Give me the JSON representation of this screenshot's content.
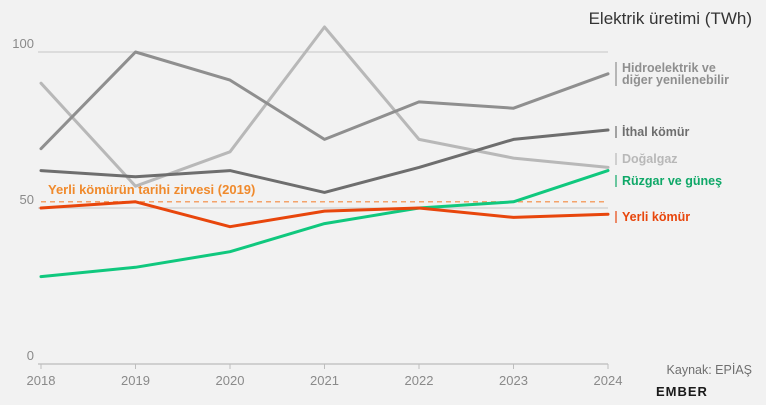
{
  "chart_data": {
    "type": "line",
    "title": "Elektrik üretimi (TWh)",
    "x": [
      2018,
      2019,
      2020,
      2021,
      2022,
      2023,
      2024
    ],
    "xlim": [
      2018,
      2024
    ],
    "ylim": [
      0,
      100
    ],
    "yticks": [
      0,
      50,
      100
    ],
    "grid": true,
    "series": [
      {
        "name": "Hidroelektrik ve diğer yenilenebilir",
        "label_lines": [
          "Hidroelektrik ve",
          "diğer yenilenebilir"
        ],
        "color": "#8f8f8f",
        "values": [
          69,
          100,
          91,
          72,
          84,
          82,
          93
        ]
      },
      {
        "name": "İthal kömür",
        "label_lines": [
          "İthal kömür"
        ],
        "color": "#6e6e6e",
        "values": [
          62,
          60,
          62,
          55,
          63,
          72,
          75
        ]
      },
      {
        "name": "Doğalgaz",
        "label_lines": [
          "Doğalgaz"
        ],
        "color": "#b8b8b8",
        "values": [
          90,
          57,
          68,
          108,
          72,
          66,
          63
        ]
      },
      {
        "name": "Rüzgar ve güneş",
        "label_lines": [
          "Rüzgar ve güneş"
        ],
        "color": "#10c87e",
        "values": [
          28,
          31,
          36,
          45,
          50,
          52,
          62
        ]
      },
      {
        "name": "Yerli kömür",
        "label_lines": [
          "Yerli kömür"
        ],
        "color": "#e8460c",
        "values": [
          50,
          52,
          44,
          49,
          50,
          47,
          48
        ]
      }
    ],
    "reference_line": {
      "label": "Yerli kömürün tarihi zirvesi (2019)",
      "value": 52,
      "color": "#f4a36b"
    },
    "source": "Kaynak: EPİAŞ",
    "brand": "EMBER"
  }
}
